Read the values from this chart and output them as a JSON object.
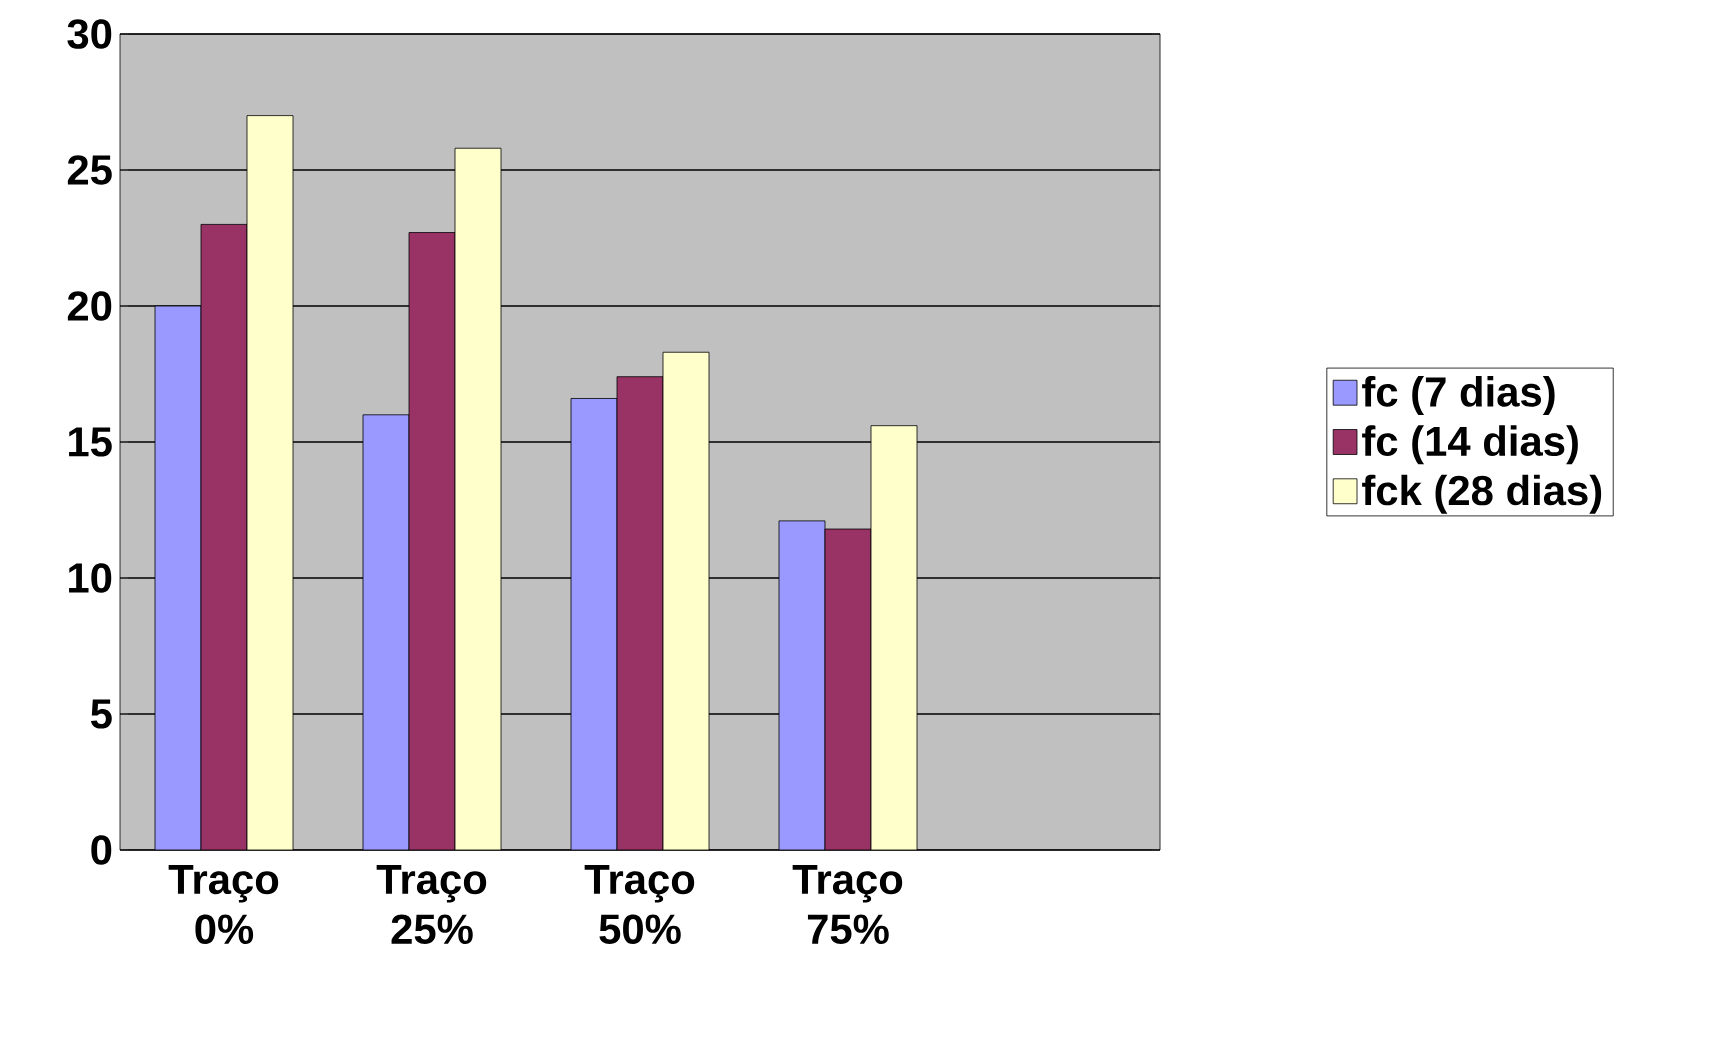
{
  "chart_data": {
    "type": "bar",
    "categories": [
      "Traço 0%",
      "Traço 25%",
      "Traço 50%",
      "Traço 75%",
      null
    ],
    "series": [
      {
        "name": "fc (7 dias)",
        "color": "#9999ff",
        "values": [
          20,
          16,
          16.6,
          12.1,
          null
        ]
      },
      {
        "name": "fc (14 dias)",
        "color": "#993366",
        "values": [
          23,
          22.7,
          17.4,
          11.8,
          null
        ]
      },
      {
        "name": "fck (28 dias)",
        "color": "#ffffcc",
        "values": [
          27,
          25.8,
          18.3,
          15.6,
          null
        ]
      }
    ],
    "ylim": [
      0,
      30
    ],
    "yticks": [
      0,
      5,
      10,
      15,
      20,
      25,
      30
    ],
    "grid": "y",
    "legend": "right"
  }
}
